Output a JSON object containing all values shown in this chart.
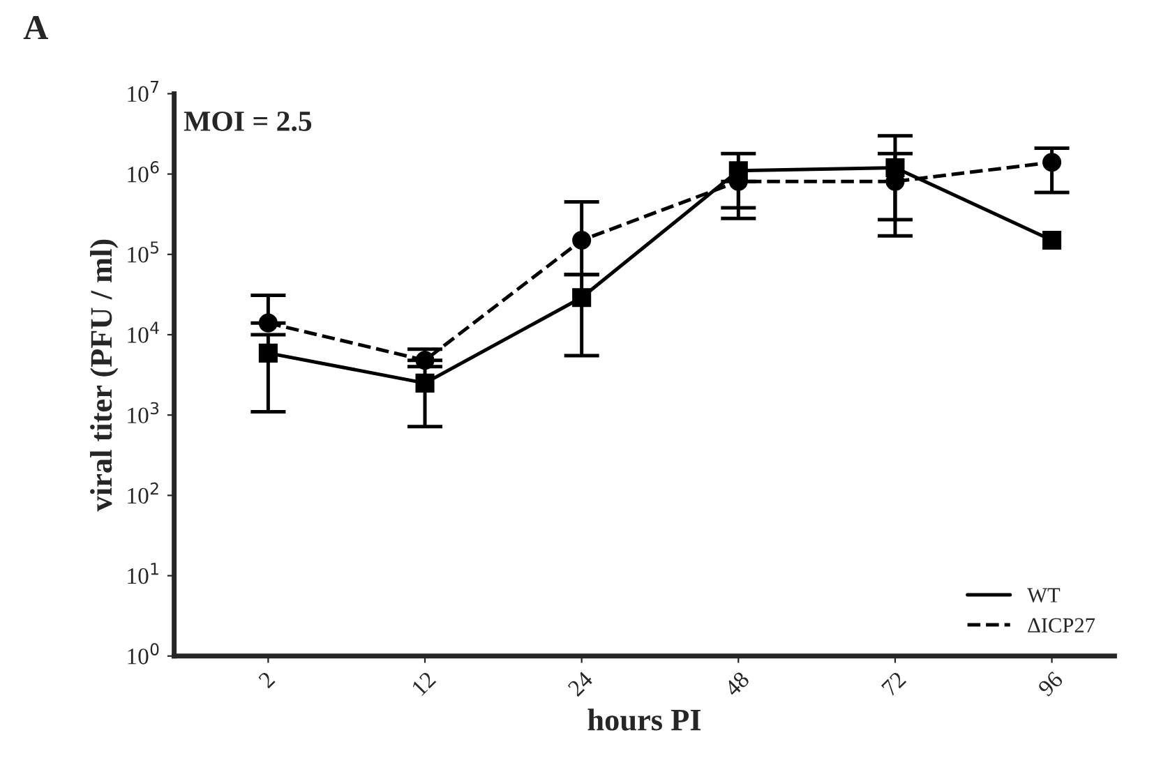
{
  "chart_data": {
    "type": "line",
    "title": "A",
    "xlabel": "hours PI",
    "ylabel": "viral titer (PFU / ml)",
    "annotations": [
      "MOI = 2.5"
    ],
    "categories": [
      "2",
      "12",
      "24",
      "48",
      "72",
      "96"
    ],
    "log": true,
    "ylim": [
      1,
      10000000
    ],
    "yticks": [
      {
        "value": 1,
        "label": "10$^{0}$"
      },
      {
        "value": 10,
        "label": "10$^{1}$"
      },
      {
        "value": 100,
        "label": "10$^{2}$"
      },
      {
        "value": 1000,
        "label": "10$^{3}$"
      },
      {
        "value": 10000,
        "label": "10$^{4}$"
      },
      {
        "value": 100000,
        "label": "10$^{5}$"
      },
      {
        "value": 1000000,
        "label": "10$^{6}$"
      },
      {
        "value": 10000000,
        "label": "10$^{7}$"
      }
    ],
    "grid": false,
    "legend": "bottom right",
    "series": [
      {
        "name": "WT",
        "color": "#000000",
        "marker": "square",
        "line_style": "solid",
        "values": [
          5900,
          2500,
          29000,
          1100000,
          1200000,
          150000
        ],
        "errors": [
          [
            1100,
            10000
          ],
          [
            720,
            4000
          ],
          [
            5500,
            56000
          ],
          [
            380000,
            1800000
          ],
          [
            270000,
            3000000
          ],
          null
        ]
      },
      {
        "name": "ΔICP27",
        "color": "#000000",
        "marker": "circle",
        "line_style": "dashed",
        "values": [
          14000,
          4800,
          150000,
          810000,
          810000,
          1400000
        ],
        "errors": [
          [
            14000,
            31000
          ],
          [
            4800,
            6600
          ],
          [
            56000,
            450000
          ],
          [
            280000,
            810000
          ],
          [
            170000,
            1800000
          ],
          [
            590000,
            2100000
          ]
        ]
      }
    ]
  }
}
